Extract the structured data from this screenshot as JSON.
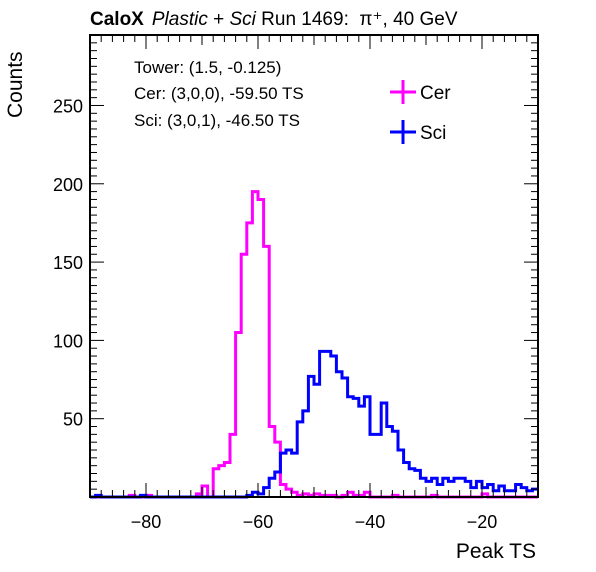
{
  "title": {
    "prefix": "CaloX",
    "italic": "Plastic",
    "plus": " + ",
    "italic2": "Sci",
    "run": " Run 1469:  ",
    "particle": "π⁺, 40 GeV"
  },
  "info": {
    "tower": "Tower: (1.5, -0.125)",
    "cer": "Cer: (3,0,0), -59.50 TS",
    "sci": "Sci: (3,0,1), -46.50 TS"
  },
  "chart_data": {
    "type": "line",
    "style": "step-histogram",
    "xlabel": "Peak TS",
    "ylabel": "Counts",
    "xlim": [
      -90,
      -10
    ],
    "ylim": [
      0,
      295
    ],
    "xticks": [
      -80,
      -60,
      -40,
      -20
    ],
    "yticks": [
      50,
      100,
      150,
      200,
      250
    ],
    "bin_width": 1,
    "legend_position": "top-right",
    "series": [
      {
        "name": "Cer",
        "color": "#ff00ff",
        "x": [
          -90,
          -89,
          -88,
          -87,
          -86,
          -85,
          -84,
          -83,
          -82,
          -81,
          -80,
          -79,
          -78,
          -77,
          -76,
          -75,
          -74,
          -73,
          -72,
          -71,
          -70,
          -69,
          -68,
          -67,
          -66,
          -65,
          -64,
          -63,
          -62,
          -61,
          -60,
          -59,
          -58,
          -57,
          -56,
          -55,
          -54,
          -53,
          -52,
          -51,
          -50,
          -49,
          -48,
          -47,
          -46,
          -45,
          -44,
          -43,
          -42,
          -41,
          -40,
          -39,
          -38,
          -37,
          -36,
          -35,
          -34,
          -33,
          -32,
          -31,
          -30,
          -29,
          -28,
          -27,
          -26,
          -25,
          -24,
          -23,
          -22,
          -21,
          -20,
          -19,
          -18,
          -17,
          -16,
          -15,
          -14,
          -13,
          -12,
          -11
        ],
        "values": [
          0,
          0,
          0,
          0,
          0,
          0,
          0,
          1,
          0,
          0,
          1,
          0,
          0,
          0,
          0,
          0,
          0,
          0,
          0,
          2,
          7,
          0,
          18,
          20,
          22,
          40,
          105,
          155,
          175,
          195,
          190,
          160,
          45,
          35,
          8,
          5,
          3,
          1,
          2,
          1,
          2,
          1,
          1,
          1,
          0,
          1,
          3,
          1,
          1,
          3,
          0,
          0,
          0,
          0,
          1,
          0,
          0,
          0,
          0,
          0,
          0,
          1,
          0,
          0,
          0,
          0,
          0,
          0,
          0,
          0,
          2,
          0,
          0,
          0,
          0,
          0,
          0,
          0,
          0,
          0
        ]
      },
      {
        "name": "Sci",
        "color": "#0000ff",
        "x": [
          -90,
          -89,
          -88,
          -87,
          -86,
          -85,
          -84,
          -83,
          -82,
          -81,
          -80,
          -79,
          -78,
          -77,
          -76,
          -75,
          -74,
          -73,
          -72,
          -71,
          -70,
          -69,
          -68,
          -67,
          -66,
          -65,
          -64,
          -63,
          -62,
          -61,
          -60,
          -59,
          -58,
          -57,
          -56,
          -55,
          -54,
          -53,
          -52,
          -51,
          -50,
          -49,
          -48,
          -47,
          -46,
          -45,
          -44,
          -43,
          -42,
          -41,
          -40,
          -39,
          -38,
          -37,
          -36,
          -35,
          -34,
          -33,
          -32,
          -31,
          -30,
          -29,
          -28,
          -27,
          -26,
          -25,
          -24,
          -23,
          -22,
          -21,
          -20,
          -19,
          -18,
          -17,
          -16,
          -15,
          -14,
          -13,
          -12,
          -11
        ],
        "values": [
          0,
          1,
          0,
          0,
          0,
          0,
          0,
          0,
          0,
          1,
          0,
          0,
          0,
          0,
          0,
          0,
          0,
          0,
          0,
          0,
          0,
          0,
          0,
          0,
          0,
          0,
          0,
          0,
          1,
          3,
          2,
          6,
          12,
          16,
          28,
          30,
          28,
          48,
          55,
          77,
          72,
          93,
          93,
          90,
          80,
          76,
          64,
          63,
          58,
          64,
          40,
          40,
          60,
          45,
          42,
          30,
          22,
          18,
          17,
          12,
          10,
          12,
          8,
          12,
          10,
          12,
          12,
          10,
          6,
          10,
          6,
          8,
          4,
          7,
          4,
          4,
          8,
          6,
          4,
          5
        ]
      }
    ]
  }
}
